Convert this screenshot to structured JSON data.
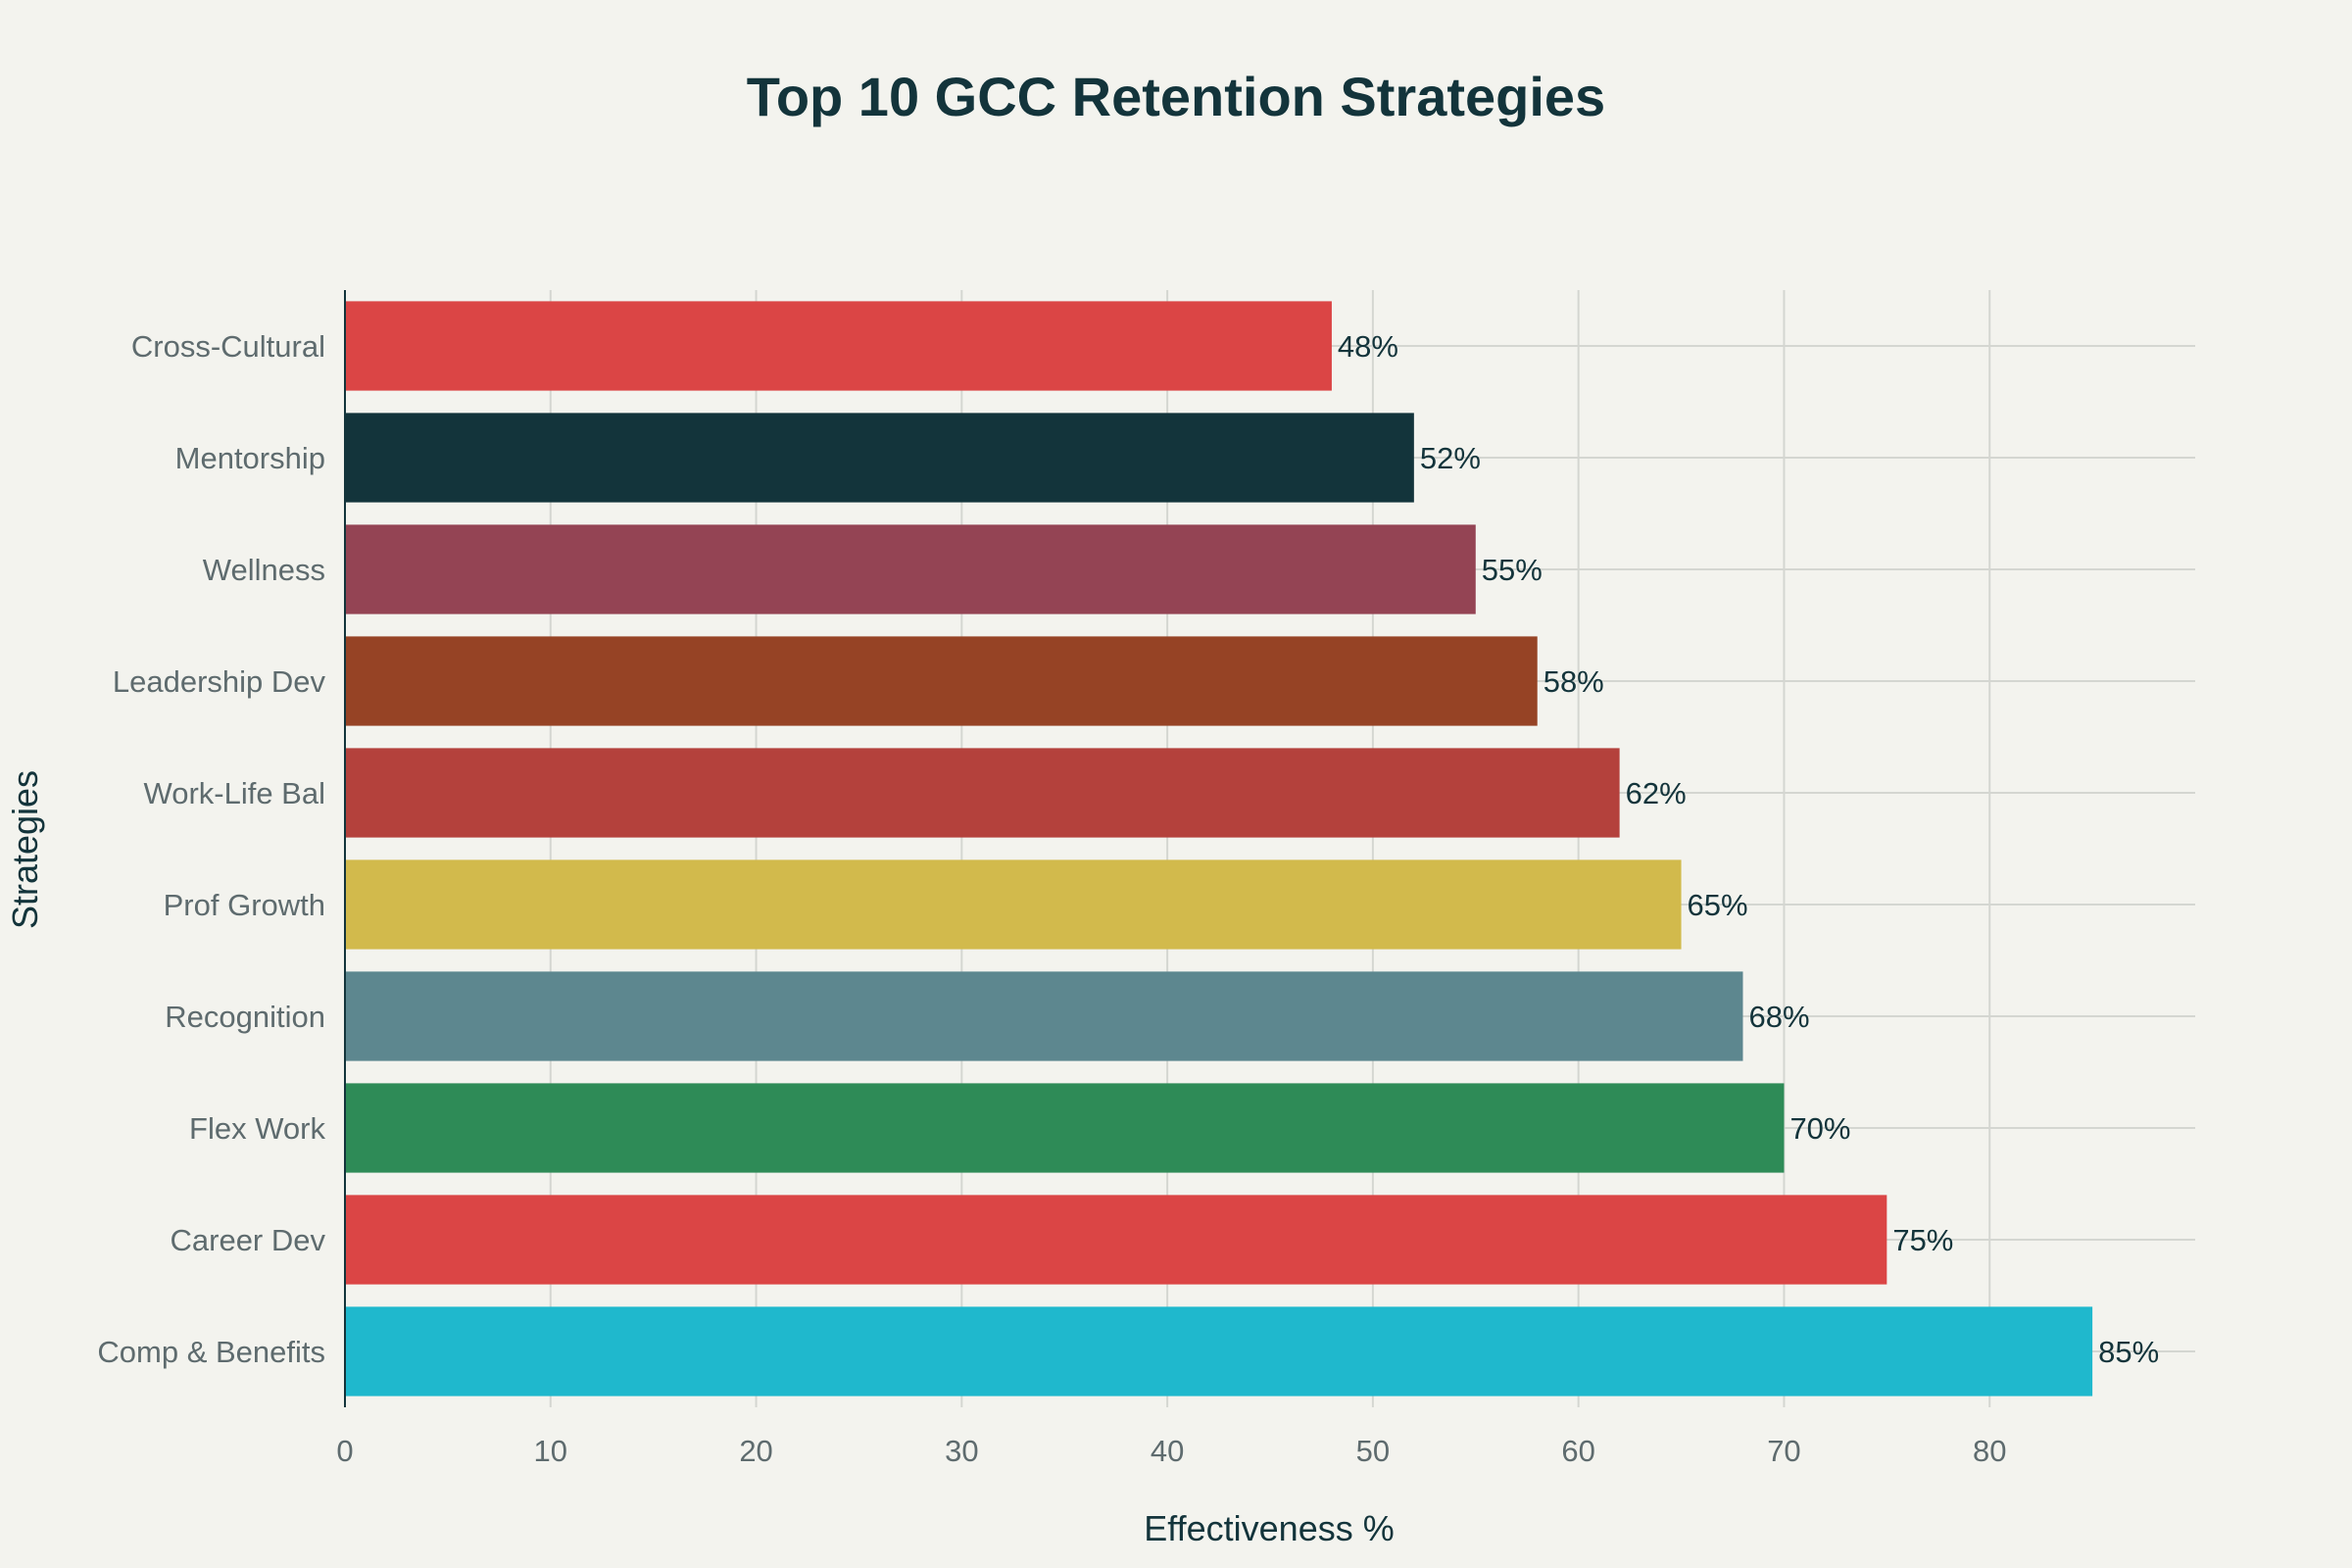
{
  "chart_data": {
    "type": "bar",
    "orientation": "horizontal",
    "title": "Top 10 GCC Retention Strategies",
    "xlabel": "Effectiveness %",
    "ylabel": "Strategies",
    "xlim": [
      0,
      90
    ],
    "xticks": [
      0,
      10,
      20,
      30,
      40,
      50,
      60,
      70,
      80
    ],
    "grid": true,
    "categories": [
      "Comp & Benefits",
      "Career Dev",
      "Flex Work",
      "Recognition",
      "Prof Growth",
      "Work-Life Bal",
      "Leadership Dev",
      "Wellness",
      "Mentorship",
      "Cross-Cultural"
    ],
    "values": [
      85,
      75,
      70,
      68,
      65,
      62,
      58,
      55,
      52,
      48
    ],
    "data_labels": [
      "85%",
      "75%",
      "70%",
      "68%",
      "65%",
      "62%",
      "58%",
      "55%",
      "52%",
      "48%"
    ],
    "colors": [
      "#1FB8CD",
      "#DB4545",
      "#2E8B57",
      "#5D878F",
      "#D2BA4C",
      "#B4413C",
      "#964325",
      "#944454",
      "#13343B",
      "#DB4545"
    ]
  }
}
